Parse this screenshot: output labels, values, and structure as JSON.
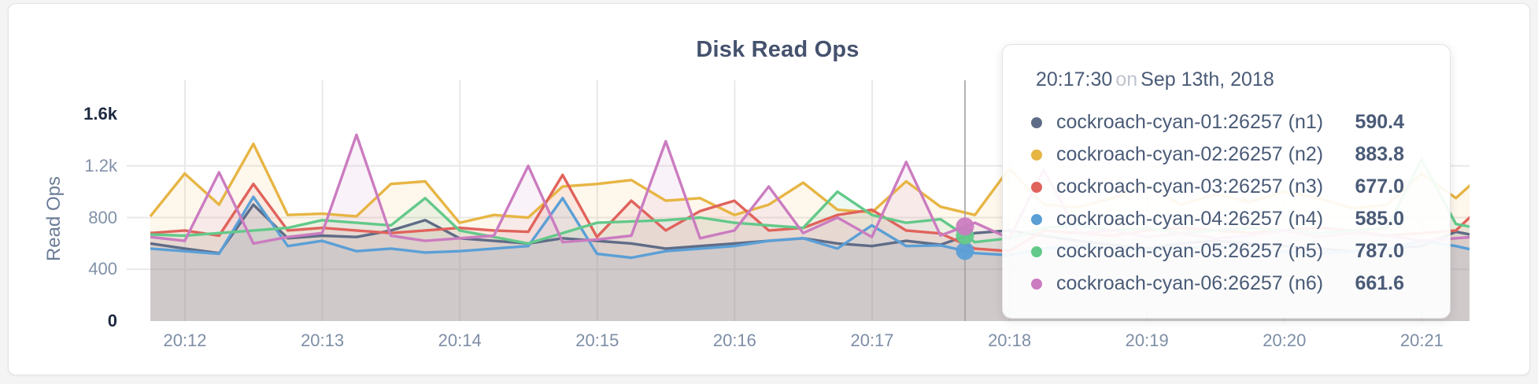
{
  "chart_data": {
    "type": "area",
    "title": "Disk Read Ops",
    "ylabel": "Read Ops",
    "ylim": [
      0,
      1600
    ],
    "grid": true,
    "legend_position": "none",
    "x_start": "20:11:45",
    "x_interval_seconds": 15,
    "x_ticks": [
      {
        "label": "20:12",
        "minute": 0
      },
      {
        "label": "20:13",
        "minute": 1
      },
      {
        "label": "20:14",
        "minute": 2
      },
      {
        "label": "20:15",
        "minute": 3
      },
      {
        "label": "20:16",
        "minute": 4
      },
      {
        "label": "20:17",
        "minute": 5
      },
      {
        "label": "20:18",
        "minute": 6
      },
      {
        "label": "20:19",
        "minute": 7
      },
      {
        "label": "20:20",
        "minute": 8
      },
      {
        "label": "20:21",
        "minute": 9
      }
    ],
    "y_ticks": [
      {
        "label": "1.6k",
        "value": 1600,
        "emphasized": true
      },
      {
        "label": "1.2k",
        "value": 1200,
        "emphasized": false
      },
      {
        "label": "800",
        "value": 800,
        "emphasized": false
      },
      {
        "label": "400",
        "value": 400,
        "emphasized": false
      },
      {
        "label": "0",
        "value": 0,
        "emphasized": true
      }
    ],
    "series": [
      {
        "id": "n1",
        "name": "cockroach-cyan-01:26257 (n1)",
        "color": "#5f6c87",
        "values": [
          600,
          560,
          525,
          900,
          640,
          660,
          650,
          700,
          780,
          640,
          620,
          600,
          640,
          620,
          600,
          560,
          580,
          600,
          620,
          640,
          600,
          580,
          620,
          590.4,
          680,
          700,
          660,
          620,
          590,
          560,
          600,
          620,
          600,
          580,
          560,
          540,
          560,
          580,
          690,
          640
        ]
      },
      {
        "id": "n2",
        "name": "cockroach-cyan-02:26257 (n2)",
        "color": "#e7b544",
        "values": [
          810,
          1140,
          900,
          1370,
          820,
          830,
          810,
          1060,
          1080,
          760,
          820,
          800,
          1040,
          1060,
          1090,
          930,
          950,
          820,
          900,
          1070,
          860,
          840,
          1080,
          883.8,
          820,
          1180,
          900,
          880,
          950,
          1050,
          900,
          980,
          920,
          1000,
          950,
          870,
          900,
          1140,
          950,
          1190
        ]
      },
      {
        "id": "n3",
        "name": "cockroach-cyan-03:26257 (n3)",
        "color": "#e0635c",
        "values": [
          680,
          700,
          660,
          1060,
          700,
          720,
          700,
          680,
          700,
          720,
          700,
          690,
          1130,
          650,
          930,
          700,
          850,
          930,
          700,
          720,
          820,
          860,
          700,
          677.0,
          560,
          540,
          700,
          680,
          660,
          700,
          720,
          700,
          680,
          700,
          720,
          700,
          660,
          680,
          700,
          950
        ]
      },
      {
        "id": "n4",
        "name": "cockroach-cyan-04:26257 (n4)",
        "color": "#5b9fd6",
        "values": [
          560,
          540,
          520,
          960,
          580,
          620,
          540,
          560,
          530,
          540,
          560,
          580,
          950,
          520,
          490,
          540,
          560,
          580,
          620,
          640,
          560,
          740,
          580,
          585.0,
          525,
          510,
          560,
          580,
          560,
          540,
          560,
          580,
          560,
          540,
          520,
          540,
          560,
          620,
          580,
          520
        ]
      },
      {
        "id": "n5",
        "name": "cockroach-cyan-05:26257 (n5)",
        "color": "#63c98a",
        "values": [
          670,
          660,
          680,
          700,
          720,
          780,
          760,
          740,
          950,
          700,
          650,
          600,
          680,
          760,
          770,
          780,
          800,
          760,
          740,
          720,
          1000,
          820,
          760,
          787.0,
          610,
          640,
          720,
          740,
          700,
          720,
          680,
          700,
          720,
          700,
          680,
          700,
          720,
          1250,
          750,
          700
        ]
      },
      {
        "id": "n6",
        "name": "cockroach-cyan-06:26257 (n6)",
        "color": "#cb7cc0",
        "values": [
          650,
          620,
          1150,
          600,
          650,
          680,
          1440,
          660,
          620,
          640,
          660,
          1200,
          610,
          630,
          660,
          1390,
          640,
          700,
          1040,
          680,
          800,
          650,
          1230,
          661.6,
          760,
          640,
          1170,
          680,
          700,
          650,
          680,
          640,
          660,
          700,
          650,
          680,
          660,
          620,
          640,
          660
        ]
      }
    ],
    "hover": {
      "time": "20:17:30",
      "preposition": "on",
      "date": "Sep 13th, 2018",
      "rows": [
        {
          "series": "n1",
          "label": "cockroach-cyan-01:26257 (n1)",
          "value": "590.4"
        },
        {
          "series": "n2",
          "label": "cockroach-cyan-02:26257 (n2)",
          "value": "883.8"
        },
        {
          "series": "n3",
          "label": "cockroach-cyan-03:26257 (n3)",
          "value": "677.0"
        },
        {
          "series": "n4",
          "label": "cockroach-cyan-04:26257 (n4)",
          "value": "585.0"
        },
        {
          "series": "n5",
          "label": "cockroach-cyan-05:26257 (n5)",
          "value": "787.0"
        },
        {
          "series": "n6",
          "label": "cockroach-cyan-06:26257 (n6)",
          "value": "661.6"
        }
      ],
      "dot_series": [
        "n4",
        "n5",
        "n6"
      ]
    },
    "colors": {
      "grid": "#e9e9e9",
      "crosshair": "#a0a0a0",
      "title": "#45526e",
      "tick": "#8191a7",
      "tick_emphasized": "#1d2940"
    }
  }
}
